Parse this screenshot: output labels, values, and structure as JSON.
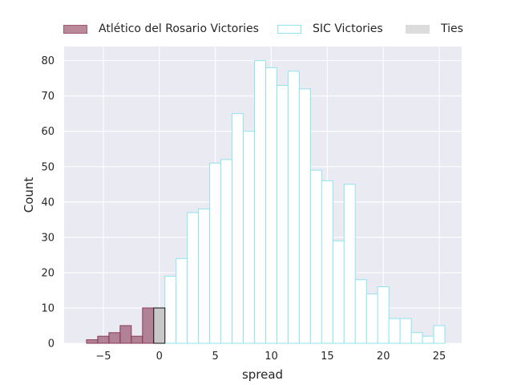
{
  "chart_data": {
    "type": "bar",
    "xlabel": "spread",
    "ylabel": "Count",
    "xlim": [
      -8.5,
      27
    ],
    "ylim": [
      0,
      84
    ],
    "grid": true,
    "legend_placement": "top (above plot, horizontal)",
    "x_ticks": [
      "−5",
      "0",
      "5",
      "10",
      "15",
      "20",
      "25"
    ],
    "y_ticks": [
      "0",
      "10",
      "20",
      "30",
      "40",
      "50",
      "60",
      "70",
      "80"
    ],
    "series": [
      {
        "name": "Atlético del Rosario Victories",
        "fill": "#8b3b56",
        "fill_opacity": 0.6,
        "edge": "#8b3b56",
        "bins": [
          {
            "x0": -6.5,
            "x1": -5.5,
            "count": 1
          },
          {
            "x0": -5.5,
            "x1": -4.5,
            "count": 2
          },
          {
            "x0": -4.5,
            "x1": -3.5,
            "count": 3
          },
          {
            "x0": -3.5,
            "x1": -2.5,
            "count": 5
          },
          {
            "x0": -2.5,
            "x1": -1.5,
            "count": 2
          },
          {
            "x0": -1.5,
            "x1": -0.5,
            "count": 10
          }
        ]
      },
      {
        "name": "SIC Victories",
        "fill": "#ffffff",
        "fill_opacity": 1,
        "edge": "#8fe3ee",
        "bins": [
          {
            "x0": 0.5,
            "x1": 1.5,
            "count": 19
          },
          {
            "x0": 1.5,
            "x1": 2.5,
            "count": 24
          },
          {
            "x0": 2.5,
            "x1": 3.5,
            "count": 37
          },
          {
            "x0": 3.5,
            "x1": 4.5,
            "count": 38
          },
          {
            "x0": 4.5,
            "x1": 5.5,
            "count": 51
          },
          {
            "x0": 5.5,
            "x1": 6.5,
            "count": 52
          },
          {
            "x0": 6.5,
            "x1": 7.5,
            "count": 65
          },
          {
            "x0": 7.5,
            "x1": 8.5,
            "count": 60
          },
          {
            "x0": 8.5,
            "x1": 9.5,
            "count": 80
          },
          {
            "x0": 9.5,
            "x1": 10.5,
            "count": 78
          },
          {
            "x0": 10.5,
            "x1": 11.5,
            "count": 73
          },
          {
            "x0": 11.5,
            "x1": 12.5,
            "count": 77
          },
          {
            "x0": 12.5,
            "x1": 13.5,
            "count": 72
          },
          {
            "x0": 13.5,
            "x1": 14.5,
            "count": 49
          },
          {
            "x0": 14.5,
            "x1": 15.5,
            "count": 46
          },
          {
            "x0": 15.5,
            "x1": 16.5,
            "count": 29
          },
          {
            "x0": 16.5,
            "x1": 17.5,
            "count": 45
          },
          {
            "x0": 17.5,
            "x1": 18.5,
            "count": 18
          },
          {
            "x0": 18.5,
            "x1": 19.5,
            "count": 14
          },
          {
            "x0": 19.5,
            "x1": 20.5,
            "count": 16
          },
          {
            "x0": 20.5,
            "x1": 21.5,
            "count": 7
          },
          {
            "x0": 21.5,
            "x1": 22.5,
            "count": 7
          },
          {
            "x0": 22.5,
            "x1": 23.5,
            "count": 3
          },
          {
            "x0": 23.5,
            "x1": 24.5,
            "count": 2
          },
          {
            "x0": 24.5,
            "x1": 25.5,
            "count": 5
          }
        ]
      },
      {
        "name": "Ties",
        "fill": "#c8c8c8",
        "fill_opacity": 1,
        "edge": "#111111",
        "bins": [
          {
            "x0": -0.5,
            "x1": 0.5,
            "count": 10
          }
        ]
      }
    ]
  },
  "colors": {
    "plot_background": "#eaeaf2",
    "grid": "#ffffff",
    "text": "#262626"
  }
}
